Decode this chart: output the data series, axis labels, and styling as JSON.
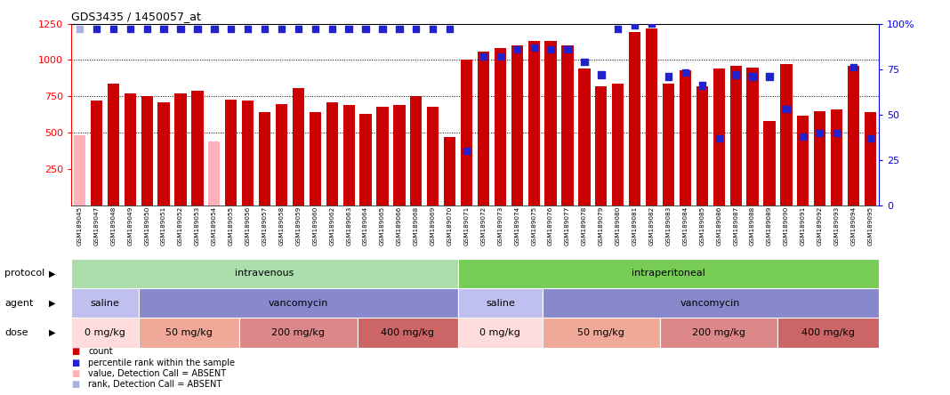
{
  "title": "GDS3435 / 1450057_at",
  "samples": [
    "GSM189045",
    "GSM189047",
    "GSM189048",
    "GSM189049",
    "GSM189050",
    "GSM189051",
    "GSM189052",
    "GSM189053",
    "GSM189054",
    "GSM189055",
    "GSM189056",
    "GSM189057",
    "GSM189058",
    "GSM189059",
    "GSM189060",
    "GSM189062",
    "GSM189063",
    "GSM189064",
    "GSM189065",
    "GSM189066",
    "GSM189068",
    "GSM189069",
    "GSM189070",
    "GSM189071",
    "GSM189072",
    "GSM189073",
    "GSM189074",
    "GSM189075",
    "GSM189076",
    "GSM189077",
    "GSM189078",
    "GSM189079",
    "GSM189080",
    "GSM189081",
    "GSM189082",
    "GSM189083",
    "GSM189084",
    "GSM189085",
    "GSM189086",
    "GSM189087",
    "GSM189088",
    "GSM189089",
    "GSM189090",
    "GSM189091",
    "GSM189092",
    "GSM189093",
    "GSM189094",
    "GSM189095"
  ],
  "count_values": [
    480,
    720,
    840,
    770,
    750,
    710,
    770,
    790,
    440,
    730,
    720,
    640,
    700,
    810,
    640,
    710,
    690,
    630,
    680,
    690,
    750,
    680,
    470,
    1000,
    1060,
    1080,
    1100,
    1130,
    1130,
    1100,
    940,
    820,
    840,
    1190,
    1220,
    840,
    930,
    820,
    940,
    960,
    950,
    580,
    975,
    620,
    650,
    660,
    960,
    640
  ],
  "absent_mask": [
    true,
    false,
    false,
    false,
    false,
    false,
    false,
    false,
    true,
    false,
    false,
    false,
    false,
    false,
    false,
    false,
    false,
    false,
    false,
    false,
    false,
    false,
    false,
    false,
    false,
    false,
    false,
    false,
    false,
    false,
    false,
    false,
    false,
    false,
    false,
    false,
    false,
    false,
    false,
    false,
    false,
    false,
    false,
    false,
    false,
    false,
    false,
    false
  ],
  "percentile_rank": [
    97,
    97,
    97,
    97,
    97,
    97,
    97,
    97,
    97,
    97,
    97,
    97,
    97,
    97,
    97,
    97,
    97,
    97,
    97,
    97,
    97,
    97,
    97,
    30,
    82,
    82,
    86,
    87,
    86,
    86,
    79,
    72,
    97,
    99,
    100,
    71,
    73,
    66,
    37,
    72,
    71,
    71,
    53,
    38,
    40,
    40,
    76,
    37
  ],
  "absent_rank_mask": [
    true,
    false,
    false,
    false,
    false,
    false,
    false,
    false,
    false,
    false,
    false,
    false,
    false,
    false,
    false,
    false,
    false,
    false,
    false,
    false,
    false,
    false,
    false,
    false,
    false,
    false,
    false,
    false,
    false,
    false,
    false,
    false,
    false,
    false,
    false,
    false,
    false,
    false,
    false,
    false,
    false,
    false,
    false,
    false,
    false,
    false,
    false,
    false
  ],
  "ylim_left": [
    0,
    1250
  ],
  "ylim_right": [
    0,
    100
  ],
  "yticks_left": [
    250,
    500,
    750,
    1000
  ],
  "ytick_top_left": 1250,
  "yticks_right": [
    0,
    25,
    50,
    75,
    100
  ],
  "bar_color": "#cc0000",
  "bar_absent_color": "#ffb0b8",
  "dot_color": "#2222cc",
  "dot_absent_color": "#aab0e0",
  "bg_color": "#ffffff",
  "xlabel_bg_color": "#cccccc",
  "protocol_groups": [
    {
      "label": "intravenous",
      "start": 0,
      "end": 23,
      "color": "#aaddaa"
    },
    {
      "label": "intraperitoneal",
      "start": 23,
      "end": 48,
      "color": "#77cc55"
    }
  ],
  "agent_groups": [
    {
      "label": "saline",
      "start": 0,
      "end": 4,
      "color": "#c0c0f0"
    },
    {
      "label": "vancomycin",
      "start": 4,
      "end": 23,
      "color": "#8888cc"
    },
    {
      "label": "saline",
      "start": 23,
      "end": 28,
      "color": "#c0c0f0"
    },
    {
      "label": "vancomycin",
      "start": 28,
      "end": 48,
      "color": "#8888cc"
    }
  ],
  "dose_groups": [
    {
      "label": "0 mg/kg",
      "start": 0,
      "end": 4,
      "color": "#ffdddd"
    },
    {
      "label": "50 mg/kg",
      "start": 4,
      "end": 10,
      "color": "#f0a898"
    },
    {
      "label": "200 mg/kg",
      "start": 10,
      "end": 17,
      "color": "#dd8888"
    },
    {
      "label": "400 mg/kg",
      "start": 17,
      "end": 23,
      "color": "#cc6666"
    },
    {
      "label": "0 mg/kg",
      "start": 23,
      "end": 28,
      "color": "#ffdddd"
    },
    {
      "label": "50 mg/kg",
      "start": 28,
      "end": 35,
      "color": "#f0a898"
    },
    {
      "label": "200 mg/kg",
      "start": 35,
      "end": 42,
      "color": "#dd8888"
    },
    {
      "label": "400 mg/kg",
      "start": 42,
      "end": 48,
      "color": "#cc6666"
    }
  ],
  "legend_items": [
    {
      "label": "count",
      "color": "#cc0000"
    },
    {
      "label": "percentile rank within the sample",
      "color": "#2222cc"
    },
    {
      "label": "value, Detection Call = ABSENT",
      "color": "#ffb0b8"
    },
    {
      "label": "rank, Detection Call = ABSENT",
      "color": "#aab0e0"
    }
  ],
  "row_labels": [
    "protocol",
    "agent",
    "dose"
  ],
  "fig_width": 10.68,
  "fig_height": 4.44,
  "dpi": 100
}
